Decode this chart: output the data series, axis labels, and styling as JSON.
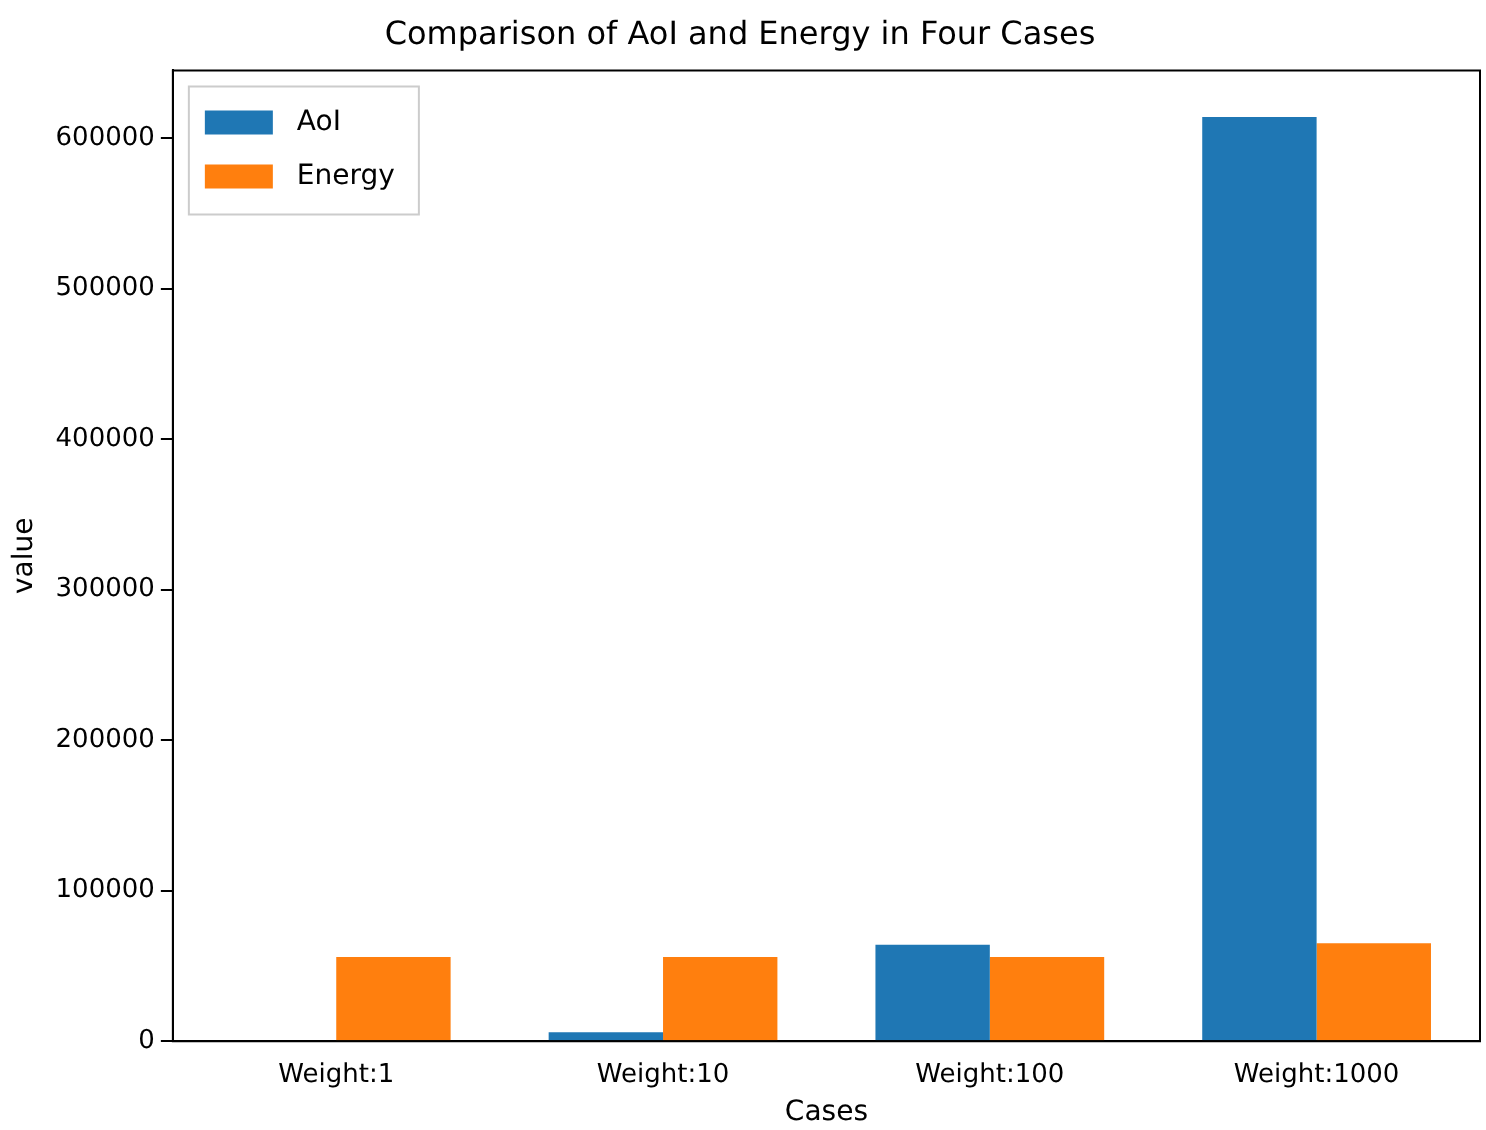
{
  "chart_data": {
    "type": "bar",
    "title": "Comparison of AoI and Energy in Four Cases",
    "xlabel": "Cases",
    "ylabel": "value",
    "categories": [
      "Weight:1",
      "Weight:10",
      "Weight:100",
      "Weight:1000"
    ],
    "series": [
      {
        "name": "AoI",
        "color": "#1f77b4",
        "values": [
          null,
          6000,
          64000,
          614000
        ]
      },
      {
        "name": "Energy",
        "color": "#ff7f0e",
        "values": [
          56000,
          56000,
          56000,
          65000
        ]
      }
    ],
    "ylim": [
      0,
      645000
    ],
    "yticks": [
      0,
      100000,
      200000,
      300000,
      400000,
      500000,
      600000
    ],
    "grid": false,
    "legend": "top left"
  }
}
